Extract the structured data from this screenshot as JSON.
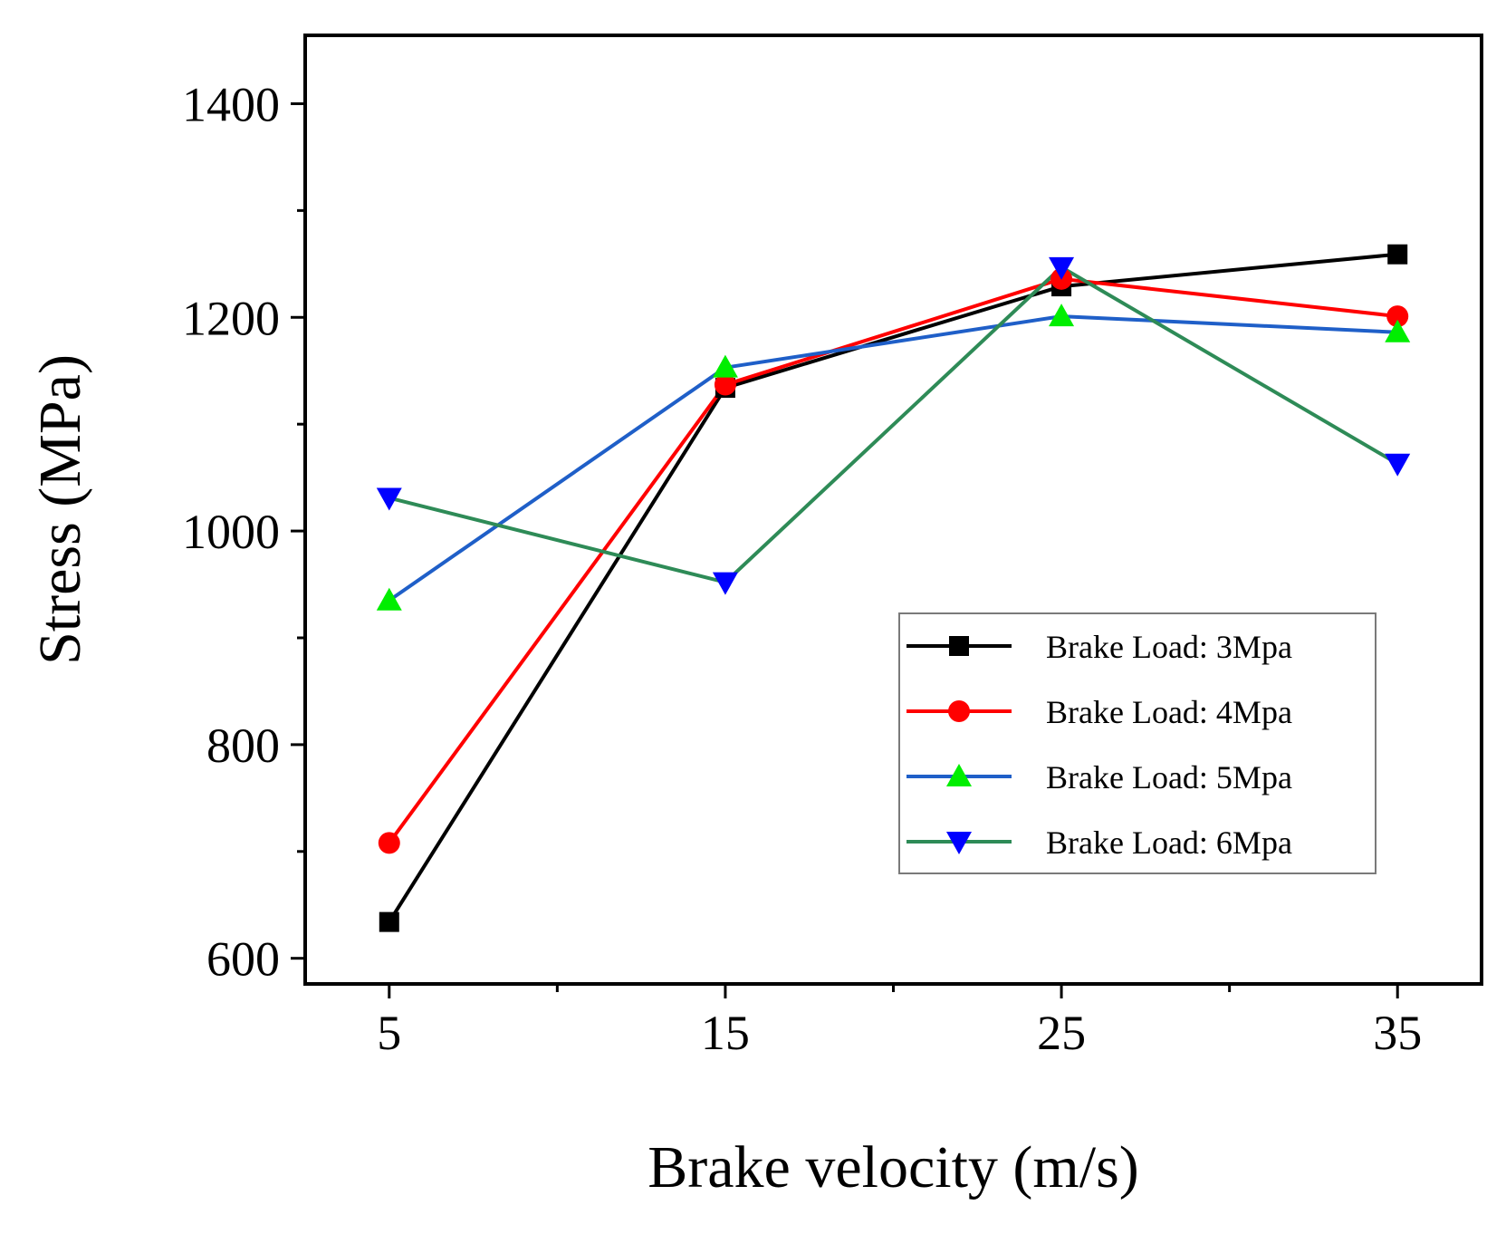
{
  "chart_data": {
    "type": "line",
    "title": "",
    "xlabel": "Brake velocity (m/s)",
    "ylabel": "Stress (MPa)",
    "x": [
      5,
      15,
      25,
      35
    ],
    "xticks": [
      "5",
      "15",
      "25",
      "35"
    ],
    "xlim": [
      2.5,
      37.5
    ],
    "ylim": [
      576,
      1464
    ],
    "yticks": [
      "600",
      "800",
      "1000",
      "1200",
      "1400"
    ],
    "grid": false,
    "legend_position": "lower-right",
    "series": [
      {
        "name": "Brake Load: 3Mpa",
        "values": [
          634,
          1134,
          1229,
          1259
        ],
        "line_color": "#000000",
        "marker_color": "#000000",
        "marker": "square"
      },
      {
        "name": "Brake Load: 4Mpa",
        "values": [
          708,
          1137,
          1236,
          1201
        ],
        "line_color": "#ff0000",
        "marker_color": "#ff0000",
        "marker": "circle"
      },
      {
        "name": "Brake Load: 5Mpa",
        "values": [
          935,
          1153,
          1201,
          1186
        ],
        "line_color": "#1f5fc8",
        "marker_color": "#00ee00",
        "marker": "triangle-up"
      },
      {
        "name": "Brake Load: 6Mpa",
        "values": [
          1031,
          952,
          1247,
          1063
        ],
        "line_color": "#2e8b57",
        "marker_color": "#0000ff",
        "marker": "triangle-down"
      }
    ]
  }
}
